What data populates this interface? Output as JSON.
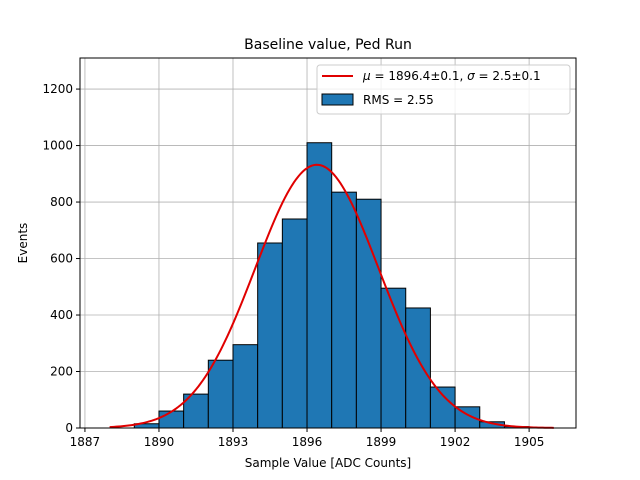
{
  "chart_data": {
    "type": "bar",
    "title": "Baseline value, Ped Run",
    "xlabel": "Sample Value [ADC Counts]",
    "ylabel": "Events",
    "xlim": [
      1886.8,
      1906.9
    ],
    "ylim": [
      0,
      1310
    ],
    "xticks": [
      1887,
      1890,
      1893,
      1896,
      1899,
      1902,
      1905
    ],
    "yticks": [
      0,
      200,
      400,
      600,
      800,
      1000,
      1200
    ],
    "grid": true,
    "legend_position": "top-right",
    "bin_width": 1,
    "bins": [
      {
        "left": 1888,
        "value": 0
      },
      {
        "left": 1889,
        "value": 15
      },
      {
        "left": 1890,
        "value": 60
      },
      {
        "left": 1891,
        "value": 120
      },
      {
        "left": 1892,
        "value": 240
      },
      {
        "left": 1893,
        "value": 295
      },
      {
        "left": 1894,
        "value": 655
      },
      {
        "left": 1895,
        "value": 740
      },
      {
        "left": 1896,
        "value": 1010
      },
      {
        "left": 1897,
        "value": 835
      },
      {
        "left": 1898,
        "value": 810
      },
      {
        "left": 1899,
        "value": 495
      },
      {
        "left": 1900,
        "value": 425
      },
      {
        "left": 1901,
        "value": 145
      },
      {
        "left": 1902,
        "value": 75
      },
      {
        "left": 1903,
        "value": 22
      },
      {
        "left": 1904,
        "value": 5
      },
      {
        "left": 1905,
        "value": 0
      }
    ],
    "fit": {
      "mean": 1896.4,
      "sigma": 2.5,
      "amplitude": 932,
      "x_range": [
        1888,
        1906
      ]
    },
    "legend": {
      "fit_label_mu": "μ",
      "fit_label_mu_value": " = 1896.4±0.1, ",
      "fit_label_sigma": "σ",
      "fit_label_sigma_value": " = 2.5±0.1",
      "hist_label": "RMS = 2.55"
    },
    "colors": {
      "bar_fill": "#1f77b4",
      "bar_edge": "#000000",
      "fit_line": "#e00000",
      "grid": "#b0b0b0"
    }
  }
}
